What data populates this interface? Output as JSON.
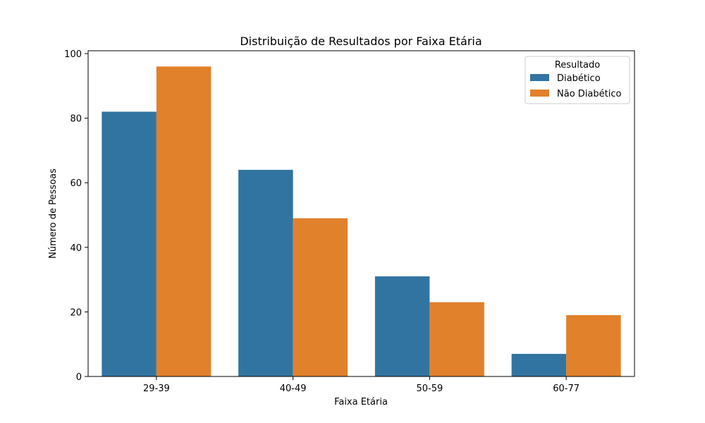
{
  "chart_data": {
    "type": "bar",
    "title": "Distribuição de Resultados por Faixa Etária",
    "xlabel": "Faixa Etária",
    "ylabel": "Número de Pessoas",
    "categories": [
      "29-39",
      "40-49",
      "50-59",
      "60-77"
    ],
    "series": [
      {
        "name": "Diabético",
        "values": [
          82,
          64,
          31,
          7
        ],
        "color": "#3274a1"
      },
      {
        "name": "Não Diabético",
        "values": [
          96,
          49,
          23,
          19
        ],
        "color": "#e1812c"
      }
    ],
    "ylim": [
      0,
      100
    ],
    "yticks": [
      0,
      20,
      40,
      60,
      80,
      100
    ],
    "grid": false,
    "legend": {
      "title": "Resultado",
      "placement": "top-right"
    }
  }
}
